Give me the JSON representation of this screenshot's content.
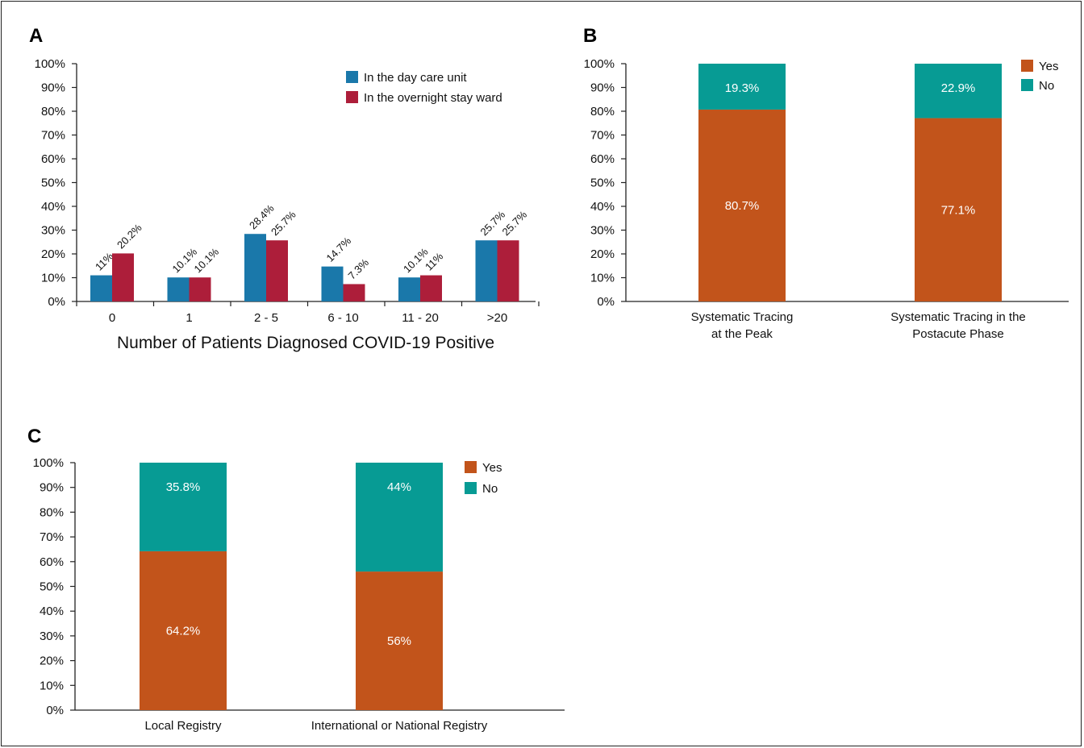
{
  "colors": {
    "blue": "#1a78aa",
    "red": "#ad1e3a",
    "yes": "#c2541b",
    "no": "#079b94",
    "axis": "#222222"
  },
  "chart_data": [
    {
      "panel": "A",
      "type": "bar",
      "xlabel": "Number of Patients Diagnosed COVID-19 Positive",
      "ylabel": "",
      "ylim": [
        0,
        100
      ],
      "yticks": [
        "0%",
        "10%",
        "20%",
        "30%",
        "40%",
        "50%",
        "60%",
        "70%",
        "80%",
        "90%",
        "100%"
      ],
      "categories": [
        "0",
        "1",
        "2 - 5",
        "6 - 10",
        "11 - 20",
        ">20"
      ],
      "legend_position": "top-right",
      "series": [
        {
          "name": "In the day care unit",
          "color": "#1a78aa",
          "values": [
            11,
            10.1,
            28.4,
            14.7,
            10.1,
            25.7
          ],
          "labels": [
            "11%",
            "10.1%",
            "28.4%",
            "14.7%",
            "10.1%",
            "25.7%"
          ]
        },
        {
          "name": "In the overnight stay ward",
          "color": "#ad1e3a",
          "values": [
            20.2,
            10.1,
            25.7,
            7.3,
            11,
            25.7
          ],
          "labels": [
            "20.2%",
            "10.1%",
            "25.7%",
            "7.3%",
            "11%",
            "25.7%"
          ]
        }
      ]
    },
    {
      "panel": "B",
      "type": "bar",
      "stacked": true,
      "ylim": [
        0,
        100
      ],
      "yticks": [
        "0%",
        "10%",
        "20%",
        "30%",
        "40%",
        "50%",
        "60%",
        "70%",
        "80%",
        "90%",
        "100%"
      ],
      "categories": [
        [
          "Systematic Tracing",
          "at the Peak"
        ],
        [
          "Systematic Tracing in the",
          "Postacute Phase"
        ]
      ],
      "legend_position": "top-right",
      "series": [
        {
          "name": "Yes",
          "color": "#c2541b",
          "values": [
            80.7,
            77.1
          ],
          "labels": [
            "80.7%",
            "77.1%"
          ]
        },
        {
          "name": "No",
          "color": "#079b94",
          "values": [
            19.3,
            22.9
          ],
          "labels": [
            "19.3%",
            "22.9%"
          ]
        }
      ]
    },
    {
      "panel": "C",
      "type": "bar",
      "stacked": true,
      "ylim": [
        0,
        100
      ],
      "yticks": [
        "0%",
        "10%",
        "20%",
        "30%",
        "40%",
        "50%",
        "60%",
        "70%",
        "80%",
        "90%",
        "100%"
      ],
      "categories": [
        [
          "Local Registry"
        ],
        [
          "International or National Registry"
        ]
      ],
      "legend_position": "top-right",
      "series": [
        {
          "name": "Yes",
          "color": "#c2541b",
          "values": [
            64.2,
            56
          ],
          "labels": [
            "64.2%",
            "56%"
          ]
        },
        {
          "name": "No",
          "color": "#079b94",
          "values": [
            35.8,
            44
          ],
          "labels": [
            "35.8%",
            "44%"
          ]
        }
      ]
    }
  ]
}
